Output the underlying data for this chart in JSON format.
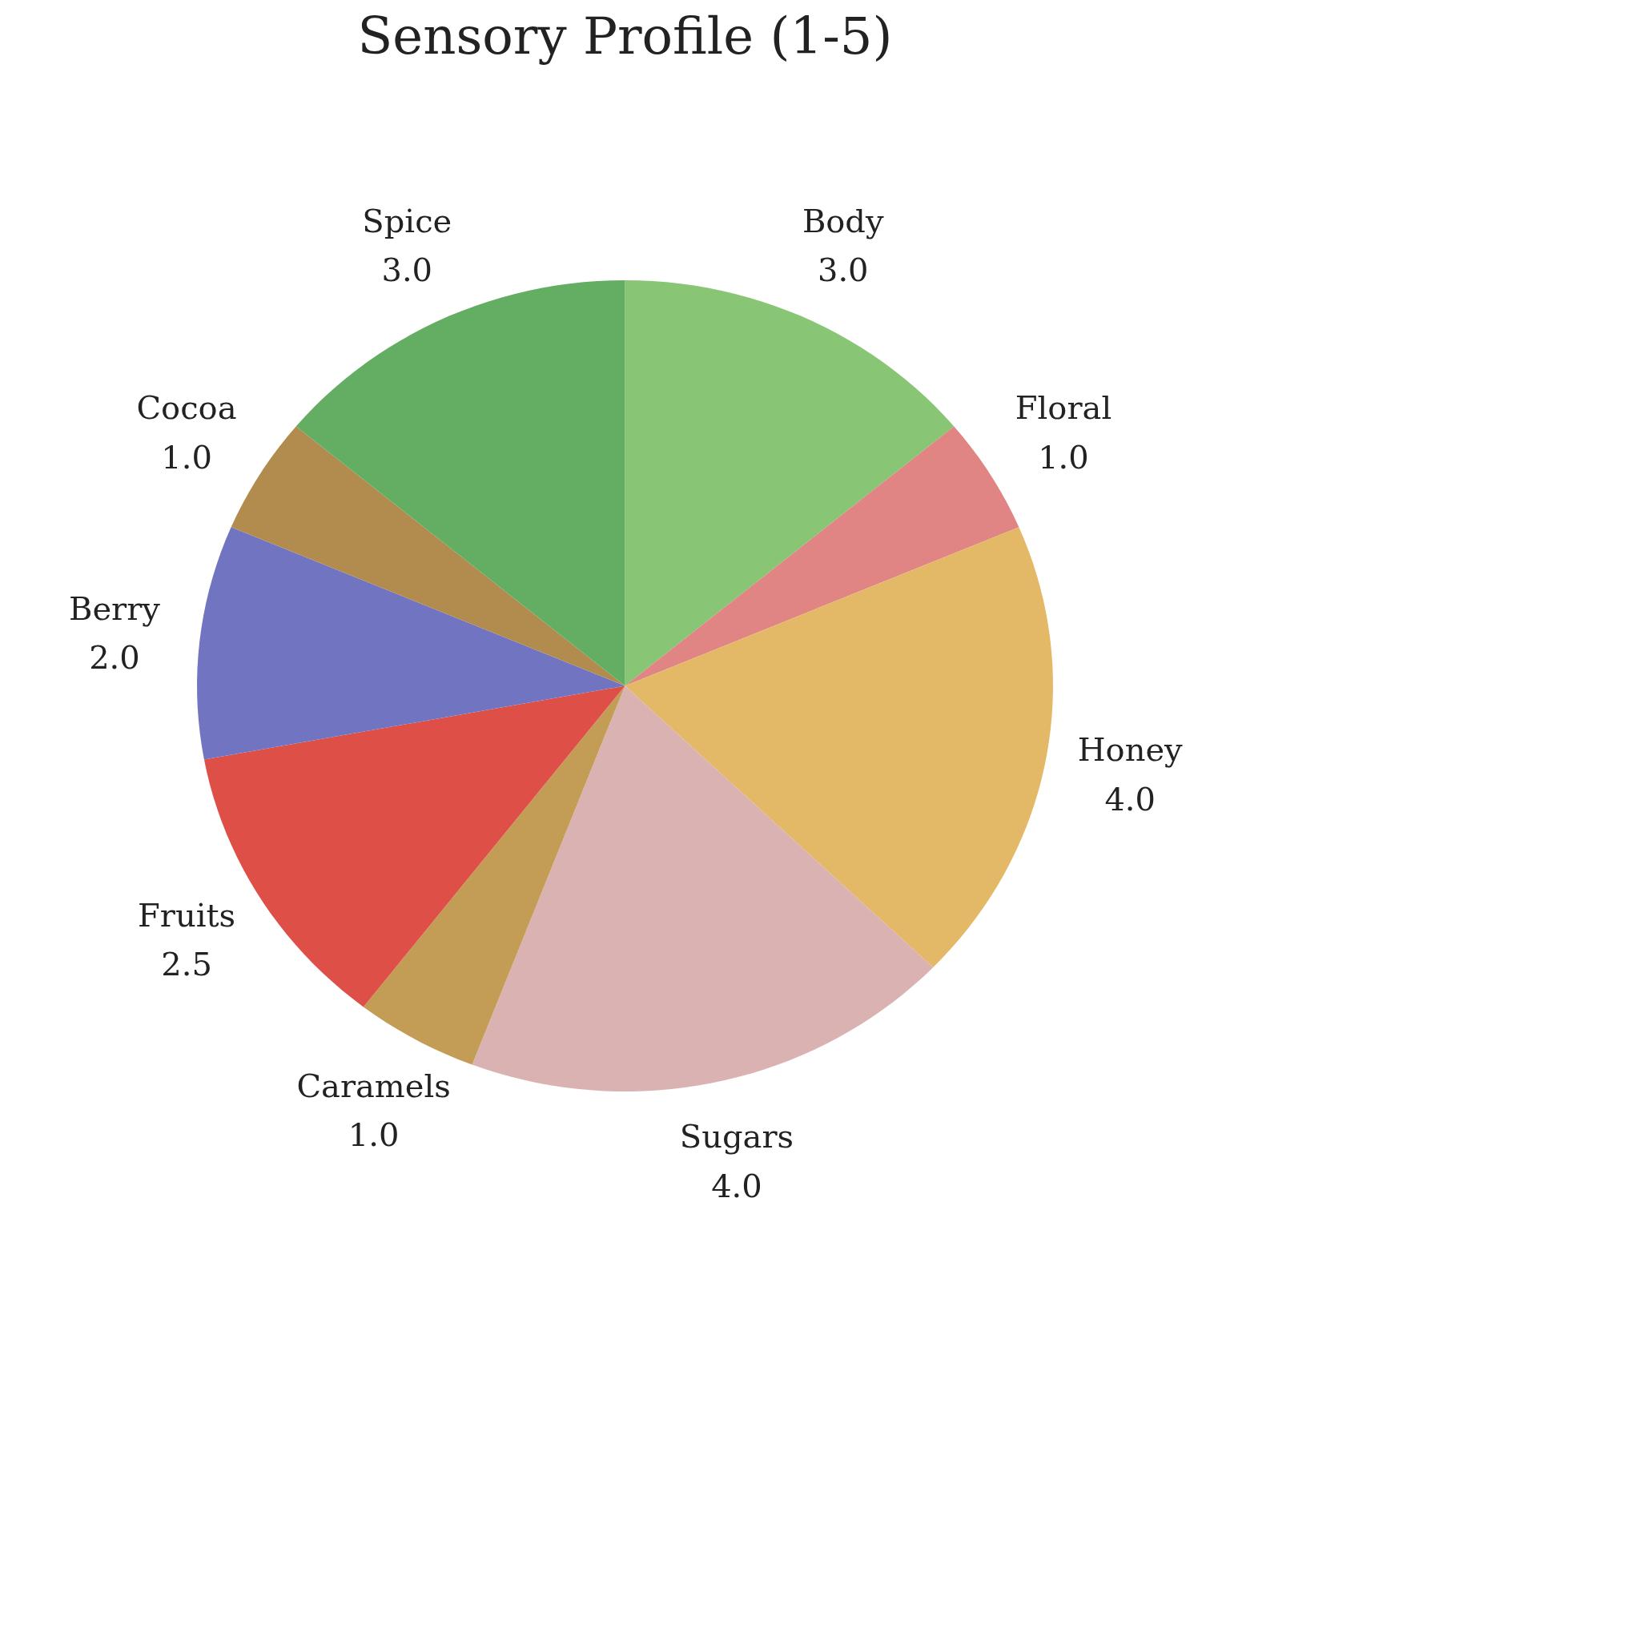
{
  "chart_data": {
    "type": "pie",
    "title": "Sensory Profile (1-5)",
    "categories": [
      "Body",
      "Floral",
      "Honey",
      "Sugars",
      "Caramels",
      "Fruits",
      "Berry",
      "Cocoa",
      "Spice"
    ],
    "values": [
      3.0,
      1.0,
      4.0,
      4.0,
      1.0,
      2.5,
      2.0,
      1.0,
      3.0
    ],
    "value_labels": [
      "3.0",
      "1.0",
      "4.0",
      "4.0",
      "1.0",
      "2.5",
      "2.0",
      "1.0",
      "3.0"
    ],
    "colors": [
      "#88c574",
      "#e08484",
      "#e3b866",
      "#dbb2b2",
      "#c39c55",
      "#de5047",
      "#7174c1",
      "#b28b4e",
      "#64ae63"
    ]
  }
}
